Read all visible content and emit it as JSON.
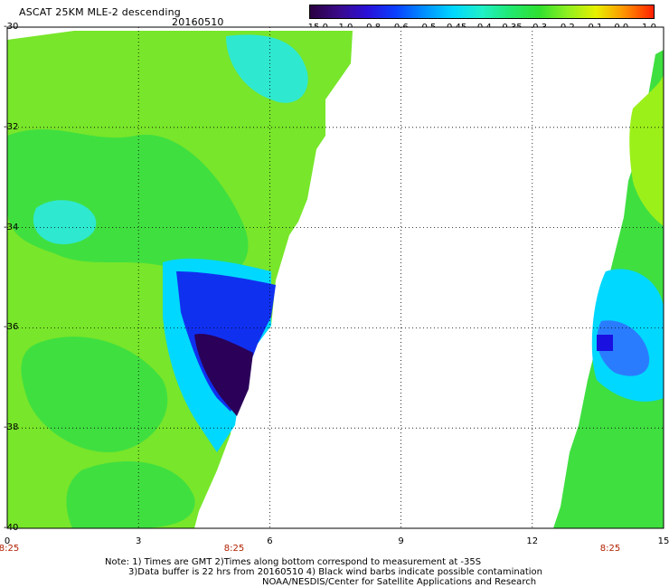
{
  "title": "ASCAT 25KM MLE-2 descending",
  "date": "20160510",
  "colorbar": {
    "labels": [
      "-15.0",
      "-1.0",
      "-0.8",
      "-0.6",
      "-0.5",
      "-0.45",
      "-0.4",
      "-0.35",
      "-0.3",
      "-0.2",
      "-0.1",
      "0.0",
      "1.0"
    ],
    "colors": [
      "#2b0040",
      "#3a0a8a",
      "#2a10d8",
      "#0a40ff",
      "#0090ff",
      "#00d8ff",
      "#20f0c8",
      "#20e870",
      "#30e030",
      "#90f020",
      "#e8f000",
      "#ff9000",
      "#ff2000"
    ]
  },
  "map": {
    "lat_labels": [
      "-30",
      "-32",
      "-34",
      "-36",
      "-38",
      "-40"
    ],
    "lon_labels": [
      "0",
      "3",
      "6",
      "9",
      "12",
      "15"
    ],
    "time_labels": [
      "8:25",
      "8:25",
      "8:25"
    ],
    "lat_range": [
      -40,
      -30
    ],
    "lon_range": [
      0,
      15
    ],
    "gridlines": true
  },
  "notes": {
    "line1": "Note: 1) Times are GMT 2)Times along bottom correspond to measurement at -35S",
    "line2": "3)Data buffer is 22 hrs from 20160510 4) Black wind barbs indicate possible contamination",
    "line3": "NOAA/NESDIS/Center for Satellite Applications and Research"
  }
}
